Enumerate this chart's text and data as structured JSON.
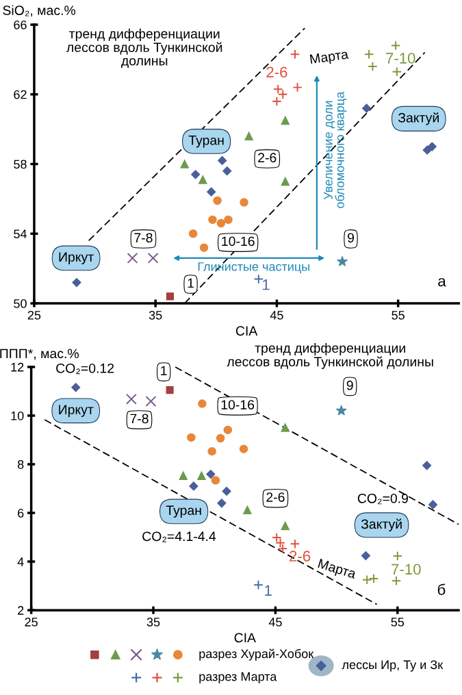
{
  "chart_data": [
    {
      "type": "scatter",
      "xlabel": "CIA",
      "ylabel": "SiO₂, мас.%",
      "xlim": [
        25,
        60
      ],
      "ylim": [
        50,
        66
      ],
      "xticks": [
        25,
        35,
        45,
        55
      ],
      "yticks": [
        50,
        54,
        58,
        62,
        66
      ],
      "grid": false,
      "legend": "bottom",
      "series": [
        {
          "color": "#a33f3f",
          "marker": "square",
          "x": [
            36.2
          ],
          "values": [
            50.4
          ]
        },
        {
          "color": "#6e9a4e",
          "marker": "triangle",
          "x": [
            37.4,
            38.9,
            42.7,
            45.7,
            45.7
          ],
          "values": [
            58.0,
            57.1,
            59.6,
            60.5,
            57.0
          ]
        },
        {
          "color": "#7a5a8a",
          "marker": "cross",
          "x": [
            33.1,
            34.8
          ],
          "values": [
            52.6,
            52.6
          ]
        },
        {
          "color": "#4a8aa0",
          "marker": "star",
          "x": [
            50.4
          ],
          "values": [
            52.4
          ]
        },
        {
          "name": "разрез Хурай-Хобок",
          "color": "#e8873a",
          "marker": "circle",
          "x": [
            40.1,
            42.3,
            39.7,
            40.4,
            41.0,
            38.1,
            39.0
          ],
          "values": [
            55.9,
            55.8,
            54.8,
            54.6,
            54.8,
            54.0,
            53.2
          ]
        },
        {
          "color": "#4a6aa8",
          "x": [
            43.5
          ],
          "values": [
            51.4
          ]
        },
        {
          "color": "#e0503a",
          "x": [
            46.5,
            45.1,
            45.5,
            46.7,
            45.0
          ],
          "values": [
            64.3,
            62.3,
            62.0,
            62.4,
            61.6
          ]
        },
        {
          "name": "разрез Марта",
          "color": "#7a9a3a",
          "x": [
            52.6,
            52.9,
            54.8,
            54.9
          ],
          "values": [
            64.3,
            63.6,
            64.8,
            63.3
          ]
        },
        {
          "name": "лессы Ир, Ту и Зк",
          "color": "#4a5f9a",
          "marker": "diamond",
          "x": [
            28.5,
            38.3,
            40.5,
            40.9,
            39.6,
            52.4,
            57.4,
            57.8
          ],
          "values": [
            51.2,
            57.4,
            58.2,
            57.6,
            56.4,
            61.2,
            58.8,
            59.0
          ]
        },
        {
          "type": "line",
          "color": "#000000",
          "line_style": "dashed",
          "x": [
            29.5,
            47.3
          ],
          "values": [
            53.6,
            65.8
          ]
        },
        {
          "type": "line",
          "color": "#000000",
          "line_style": "dashed",
          "x": [
            37.4,
            57.2
          ],
          "values": [
            50.0,
            64.4
          ]
        }
      ],
      "annotations": [
        "тренд дифференциации\nлессов вдоль Тункинской\nдолины",
        "Иркут",
        "Туран",
        "Зактуй",
        "7-8",
        "1",
        "10-16",
        "2-6",
        "9",
        "2-6",
        "7-10",
        "1",
        "Марта",
        "Глинистые частицы",
        "Увеличение доли\nобломочного кварца",
        "а"
      ]
    },
    {
      "type": "scatter",
      "xlabel": "CIA",
      "ylabel": "ППП*, мас.%",
      "xlim": [
        25,
        60
      ],
      "ylim": [
        2,
        12
      ],
      "xticks": [
        25,
        35,
        45,
        55
      ],
      "yticks": [
        2,
        4,
        6,
        8,
        10,
        12
      ],
      "grid": false,
      "legend": "bottom",
      "series": [
        {
          "color": "#a33f3f",
          "marker": "square",
          "x": [
            36.35
          ],
          "values": [
            11.05
          ]
        },
        {
          "color": "#6e9a4e",
          "marker": "triangle",
          "x": [
            37.45,
            38.95,
            45.8,
            42.7,
            45.8
          ],
          "values": [
            7.53,
            7.53,
            9.51,
            6.12,
            5.47
          ]
        },
        {
          "color": "#7a5a8a",
          "marker": "cross",
          "x": [
            33.2,
            34.8
          ],
          "values": [
            10.68,
            10.59
          ]
        },
        {
          "color": "#4a8aa0",
          "marker": "star",
          "x": [
            50.4
          ],
          "values": [
            10.2
          ]
        },
        {
          "name": "разрез Хурай-Хобок",
          "color": "#e8873a",
          "marker": "circle",
          "x": [
            39.0,
            38.1,
            40.5,
            41.1,
            39.8,
            42.4,
            40.1
          ],
          "values": [
            10.49,
            9.1,
            9.07,
            9.41,
            8.53,
            8.63,
            7.34
          ]
        },
        {
          "color": "#4a6aa8",
          "x": [
            43.6
          ],
          "values": [
            3.04
          ]
        },
        {
          "color": "#e0503a",
          "x": [
            45.1,
            45.4,
            45.6,
            46.6
          ],
          "values": [
            4.99,
            4.77,
            4.53,
            4.73
          ]
        },
        {
          "name": "разрез Марта",
          "color": "#7a9a3a",
          "x": [
            55.0,
            52.5,
            53.05,
            54.9
          ],
          "values": [
            4.23,
            3.25,
            3.3,
            3.21
          ]
        },
        {
          "name": "лессы Ир, Ту и Зк",
          "color": "#4a5f9a",
          "marker": "diamond",
          "x": [
            28.65,
            39.7,
            38.3,
            41.0,
            40.6,
            57.4,
            57.9,
            52.4
          ],
          "values": [
            11.16,
            7.59,
            7.1,
            6.89,
            6.4,
            7.95,
            6.34,
            4.24
          ]
        },
        {
          "type": "line",
          "color": "#000000",
          "line_style": "dashed",
          "x": [
            36.8,
            60.0
          ],
          "values": [
            12.0,
            5.53
          ]
        },
        {
          "type": "line",
          "color": "#000000",
          "line_style": "dashed",
          "x": [
            26.1,
            53.3
          ],
          "values": [
            9.83,
            2.24
          ]
        }
      ],
      "annotations": [
        "тренд дифференциации\nлессов вдоль Тункинской долины",
        "CO₂=0.12",
        "Иркут",
        "1",
        "7-8",
        "10-16",
        "9",
        "Туран",
        "CO₂=4.1-4.4",
        "2-6",
        "2-6",
        "Марта",
        "CO₂=0.9",
        "Зактуй",
        "7-10",
        "1",
        "б"
      ]
    }
  ]
}
